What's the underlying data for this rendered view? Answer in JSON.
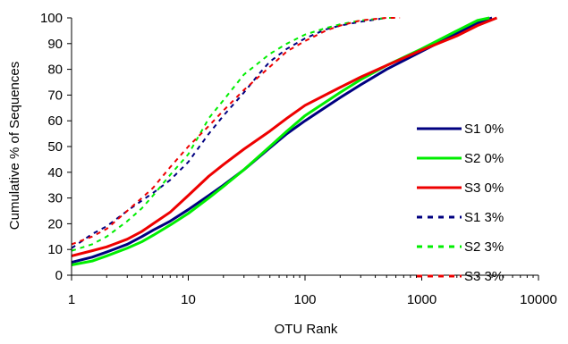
{
  "chart_data": {
    "type": "line",
    "xlabel": "OTU Rank",
    "ylabel": "Cumulative % of Sequences",
    "x_scale": "log",
    "xlim": [
      1,
      10000
    ],
    "ylim": [
      0,
      100
    ],
    "x_ticks": [
      {
        "value": 1,
        "label": "1"
      },
      {
        "value": 10,
        "label": "10"
      },
      {
        "value": 100,
        "label": "100"
      },
      {
        "value": 1000,
        "label": "1000"
      },
      {
        "value": 10000,
        "label": "10000"
      }
    ],
    "y_ticks": [
      {
        "value": 0,
        "label": "0"
      },
      {
        "value": 10,
        "label": "10"
      },
      {
        "value": 20,
        "label": "20"
      },
      {
        "value": 30,
        "label": "30"
      },
      {
        "value": 40,
        "label": "40"
      },
      {
        "value": 50,
        "label": "50"
      },
      {
        "value": 60,
        "label": "60"
      },
      {
        "value": 70,
        "label": "70"
      },
      {
        "value": 80,
        "label": "80"
      },
      {
        "value": 90,
        "label": "90"
      },
      {
        "value": 100,
        "label": "100"
      }
    ],
    "grid": false,
    "legend_position": "right",
    "series": [
      {
        "name": "S1 0%",
        "color": "#000080",
        "dash": "solid",
        "width": 3,
        "x": [
          1,
          1.5,
          2,
          3,
          4,
          5,
          7,
          10,
          15,
          20,
          30,
          50,
          70,
          100,
          200,
          300,
          500,
          1000,
          2000,
          3000,
          4000
        ],
        "y": [
          5,
          7,
          9,
          12,
          15,
          17.5,
          21,
          25.5,
          31,
          35,
          41,
          49.5,
          55,
          60,
          69,
          74,
          80,
          87,
          94,
          98,
          100
        ]
      },
      {
        "name": "S2 0%",
        "color": "#00EE00",
        "dash": "solid",
        "width": 3,
        "x": [
          1,
          1.5,
          2,
          3,
          4,
          5,
          7,
          10,
          15,
          20,
          30,
          50,
          70,
          100,
          200,
          300,
          500,
          1000,
          2000,
          3000,
          3800
        ],
        "y": [
          4,
          5.5,
          7.5,
          10.5,
          13,
          15.5,
          19.5,
          24,
          30,
          34.5,
          41,
          50,
          56,
          62,
          71,
          76,
          81.5,
          88,
          95,
          99,
          100
        ]
      },
      {
        "name": "S3 0%",
        "color": "#EE0000",
        "dash": "solid",
        "width": 3,
        "x": [
          1,
          1.5,
          2,
          3,
          4,
          5,
          7,
          10,
          15,
          20,
          30,
          50,
          70,
          100,
          200,
          300,
          500,
          1000,
          2000,
          3000,
          4400
        ],
        "y": [
          7.5,
          9.5,
          11,
          14,
          17,
          20,
          24.5,
          31,
          38.5,
          43,
          49,
          56,
          61,
          66,
          73,
          77,
          81.5,
          87.5,
          93,
          97,
          100
        ]
      },
      {
        "name": "S1 3%",
        "color": "#000080",
        "dash": "dashed",
        "width": 2,
        "x": [
          1,
          1.5,
          2,
          3,
          4,
          5,
          7,
          10,
          15,
          20,
          30,
          40,
          50,
          70,
          100,
          150,
          200,
          300,
          500
        ],
        "y": [
          10.5,
          16,
          19,
          25,
          29,
          32,
          37,
          44,
          55,
          62,
          71,
          78,
          83,
          88,
          92,
          95.5,
          97,
          98.5,
          100
        ]
      },
      {
        "name": "S2 3%",
        "color": "#00EE00",
        "dash": "dashed",
        "width": 2,
        "x": [
          1,
          1.5,
          2,
          3,
          4,
          5,
          7,
          10,
          13,
          15,
          20,
          30,
          50,
          70,
          100,
          150,
          200,
          300,
          500,
          600
        ],
        "y": [
          9.5,
          12,
          15,
          21,
          26,
          31,
          39,
          47,
          56,
          61,
          68,
          78,
          86,
          90,
          93.5,
          96,
          97.5,
          99,
          100,
          100
        ]
      },
      {
        "name": "S3 3%",
        "color": "#EE0000",
        "dash": "dashed",
        "width": 2,
        "x": [
          1,
          1.5,
          2,
          3,
          4,
          5,
          7,
          10,
          15,
          20,
          30,
          50,
          70,
          100,
          150,
          200,
          300,
          500,
          650
        ],
        "y": [
          12,
          15,
          18,
          25,
          30,
          34,
          42,
          50,
          58,
          64,
          72,
          81,
          87,
          91,
          95,
          97,
          99,
          100,
          100
        ]
      }
    ]
  }
}
